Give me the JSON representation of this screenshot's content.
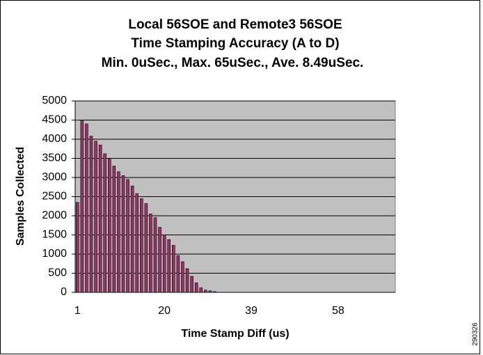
{
  "chart_data": {
    "type": "bar",
    "title": [
      "Local 56SOE and Remote3 56SOE",
      "Time Stamping Accuracy (A to D)",
      "Min. 0uSec.,  Max. 65uSec., Ave. 8.49uSec."
    ],
    "xlabel": "Time Stamp Diff (us)",
    "ylabel": "Samples Collected",
    "side_label": "290326",
    "categories": [
      "1",
      null,
      null,
      null,
      null,
      null,
      null,
      null,
      null,
      null,
      null,
      null,
      null,
      null,
      null,
      null,
      null,
      null,
      null,
      "20",
      null,
      null,
      null,
      null,
      null,
      null,
      null,
      null,
      null,
      null,
      null,
      null,
      null,
      null,
      null,
      null,
      null,
      null,
      "39",
      null,
      null,
      null,
      null,
      null,
      null,
      null,
      null,
      null,
      null,
      null,
      null,
      null,
      null,
      null,
      null,
      null,
      null,
      "58",
      null,
      null,
      null,
      null,
      null,
      null,
      null,
      null,
      null,
      null,
      null,
      null
    ],
    "values": [
      2350,
      4480,
      4400,
      4080,
      3950,
      3850,
      3620,
      3480,
      3300,
      3150,
      3050,
      2950,
      2780,
      2580,
      2450,
      2320,
      2050,
      1950,
      1700,
      1500,
      1380,
      1230,
      960,
      800,
      620,
      420,
      250,
      120,
      60,
      40,
      20,
      0,
      0,
      0,
      0,
      0,
      0,
      0,
      0,
      0,
      0,
      0,
      0,
      0,
      0,
      0,
      0,
      0,
      0,
      0,
      0,
      0,
      0,
      0,
      0,
      0,
      0,
      0,
      0,
      0,
      0,
      0,
      0,
      0,
      0,
      0,
      0,
      0,
      0,
      0
    ],
    "color": "#993366",
    "plot_background": "#c0c0c0",
    "ylim": [
      0,
      5000
    ],
    "yticks": [
      0,
      500,
      1000,
      1500,
      2000,
      2500,
      3000,
      3500,
      4000,
      4500,
      5000
    ],
    "grid": true
  }
}
